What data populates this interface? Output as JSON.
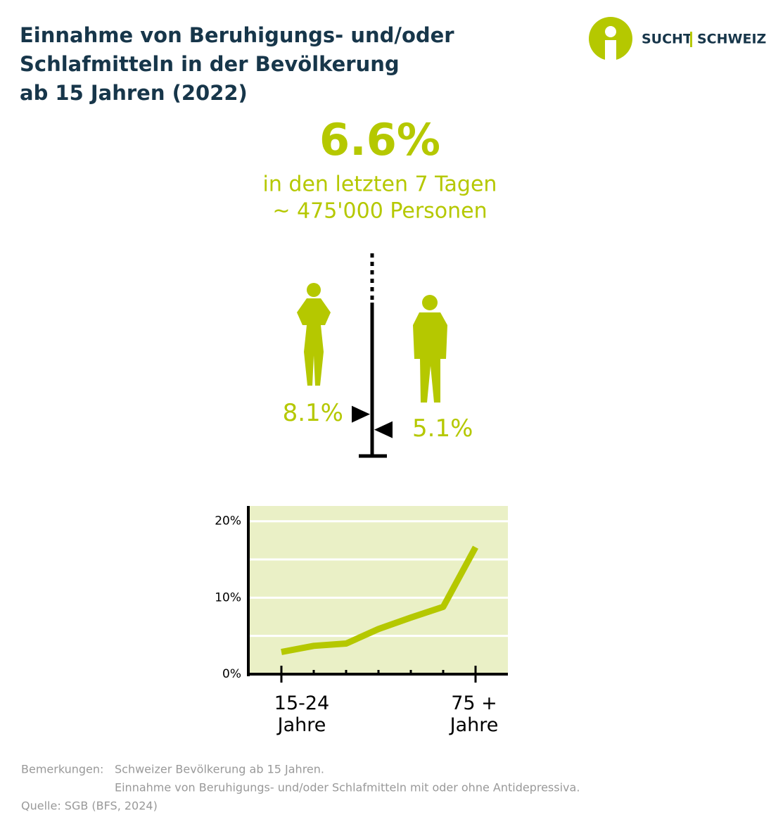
{
  "header": {
    "title_lines": [
      "Einnahme von Beruhigungs- und/oder",
      "Schlafmitteln in der Bevölkerung",
      "ab 15 Jahren (2022)"
    ],
    "logo": [
      "SUCHT",
      "SCHWEIZ"
    ]
  },
  "headline": {
    "figure": "6.6%",
    "lines": [
      "in den letzten 7 Tagen",
      "~ 475'000 Personen"
    ]
  },
  "chart_data": [
    {
      "type": "marker",
      "values": [
        8.1,
        5.1
      ],
      "value_labels": [
        "8.1%",
        "5.1%"
      ],
      "color": "#b5c800"
    },
    {
      "type": "line",
      "categories": [
        "15-24 Jahre",
        null,
        null,
        null,
        null,
        null,
        "75 + Jahre"
      ],
      "values": [
        2.9,
        3.7,
        4.0,
        5.9,
        7.4,
        8.8,
        16.6
      ],
      "color": "#b5c800",
      "ylim": [
        0,
        22
      ],
      "yticks": [
        {
          "value": 0,
          "label": "0%"
        },
        {
          "value": 10,
          "label": "10%"
        },
        {
          "value": 20,
          "label": "20%"
        }
      ],
      "minor_yticks": [
        5,
        15
      ],
      "grid": true,
      "background": "#eaf0c6"
    }
  ],
  "notes": {
    "label": "Bemerkungen:",
    "lines": [
      "Schweizer Bevölkerung ab 15 Jahren.",
      "Einnahme von Beruhigungs- und/oder Schlafmitteln mit oder ohne Antidepressiva."
    ],
    "source": "Quelle: SGB (BFS, 2024)"
  }
}
